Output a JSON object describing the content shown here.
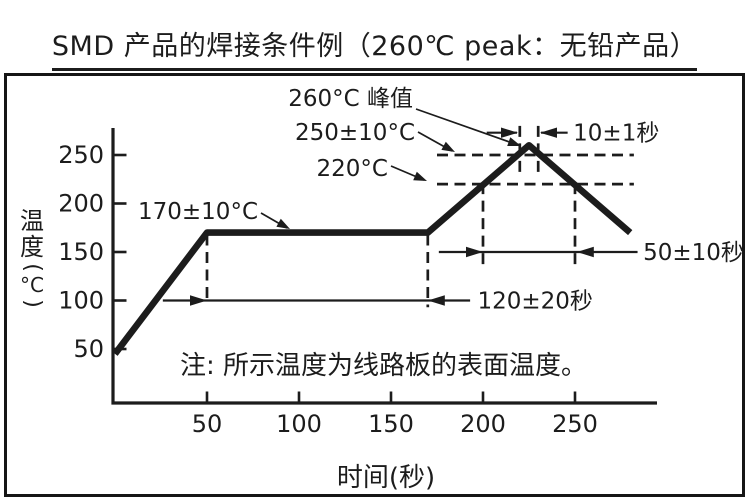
{
  "chart_data": {
    "type": "line",
    "title": "SMD 产品的焊接条件例（260℃ peak：无铅产品）",
    "xlabel": "时间(秒)",
    "ylabel": "温度(℃)",
    "xlim": [
      0,
      295
    ],
    "ylim": [
      0,
      285
    ],
    "grid": false,
    "legend": "none",
    "x_ticks": [
      50,
      100,
      150,
      200,
      250
    ],
    "y_ticks": [
      50,
      100,
      150,
      200,
      250
    ],
    "series": [
      {
        "points": [
          [
            0,
            45
          ],
          [
            50,
            170
          ],
          [
            170,
            170
          ],
          [
            225,
            260
          ],
          [
            280,
            170
          ]
        ]
      }
    ],
    "reference_lines": {
      "horizontal_C": [
        250,
        220
      ],
      "vertical_s": [
        50,
        170,
        200,
        220,
        230,
        250
      ]
    },
    "annotations": {
      "peak": "260°C 峰值",
      "peak_range": "250±10°C",
      "threshold": "220°C",
      "preheat": "170±10°C",
      "peak_time": "10±1秒",
      "above220_time": "50±10秒",
      "preheat_time": "120±20秒",
      "note": "注: 所示温度为线路板的表面温度。"
    }
  }
}
